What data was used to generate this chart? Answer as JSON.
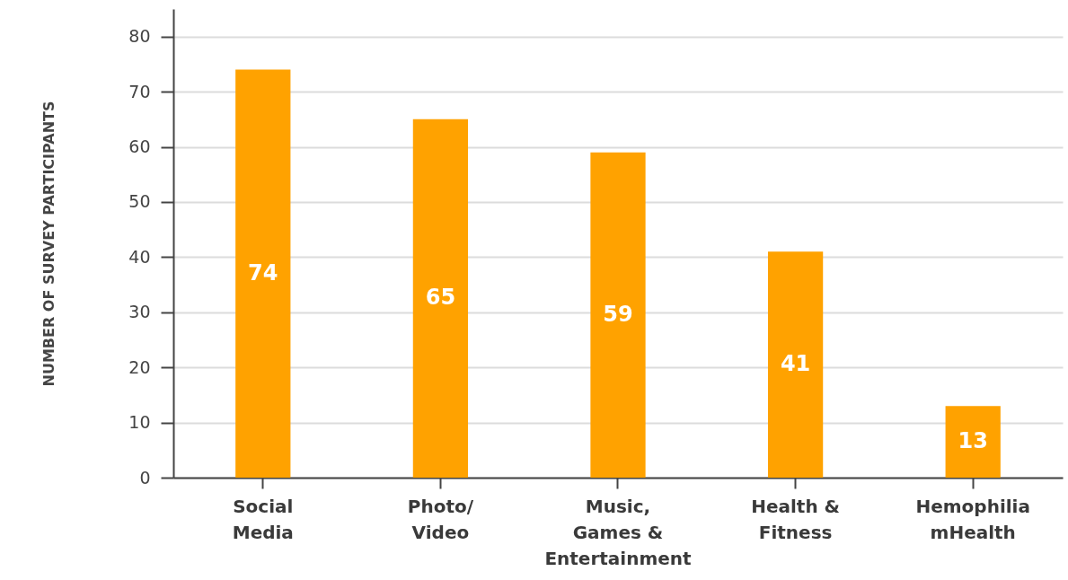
{
  "chart_data": {
    "type": "bar",
    "ylabel": "NUMBER OF SURVEY PARTICIPANTS",
    "categories": [
      "Social\nMedia",
      "Photo/\nVideo",
      "Music,\nGames &\nEntertainment",
      "Health &\nFitness",
      "Hemophilia\nmHealth"
    ],
    "values": [
      74,
      65,
      59,
      41,
      13
    ],
    "color": "#ffa200",
    "ylim": [
      0,
      85
    ],
    "yticks": [
      0,
      10,
      20,
      30,
      40,
      50,
      60,
      70,
      80
    ],
    "grid": "y",
    "data_labels": true
  }
}
